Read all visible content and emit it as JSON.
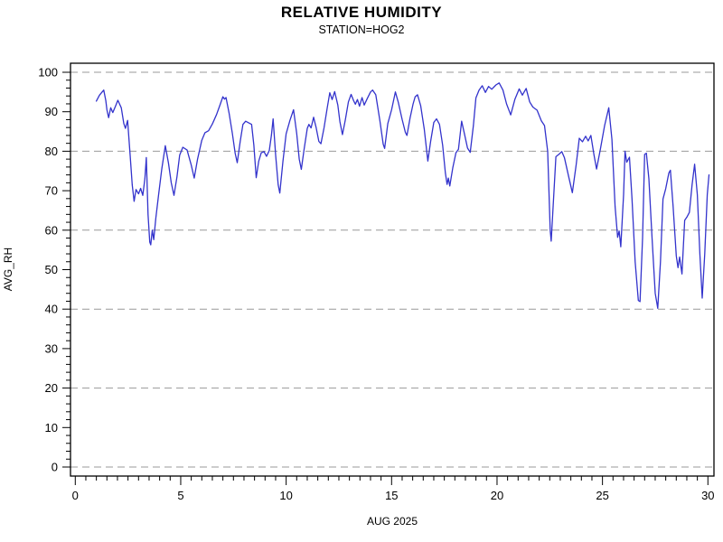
{
  "chart_data": {
    "type": "line",
    "title": "RELATIVE HUMIDITY",
    "subtitle": "STATION=HOG2",
    "xlabel": "AUG 2025",
    "ylabel": "AVG_RH",
    "xlim": [
      0,
      30
    ],
    "ylim": [
      0,
      100
    ],
    "x_major_ticks": [
      0,
      5,
      10,
      15,
      20,
      25,
      30
    ],
    "x_minor_step": 0.5,
    "y_major_ticks": [
      0,
      10,
      20,
      30,
      40,
      50,
      60,
      70,
      80,
      90,
      100
    ],
    "y_minor_step": 2,
    "grid_values": [
      0,
      20,
      40,
      60,
      80,
      100
    ],
    "grid_on": true,
    "legend": "none",
    "line_color": "#3333cc",
    "grid_color": "#999999",
    "frame_color": "#000000",
    "series": [
      {
        "name": "AVG_RH",
        "points": [
          [
            1.0,
            92.7
          ],
          [
            1.15,
            94.2
          ],
          [
            1.35,
            95.5
          ],
          [
            1.45,
            92.8
          ],
          [
            1.5,
            90.5
          ],
          [
            1.58,
            88.5
          ],
          [
            1.68,
            91.0
          ],
          [
            1.78,
            89.8
          ],
          [
            1.9,
            91.3
          ],
          [
            2.02,
            92.9
          ],
          [
            2.18,
            91.0
          ],
          [
            2.3,
            87.0
          ],
          [
            2.38,
            85.8
          ],
          [
            2.48,
            87.8
          ],
          [
            2.6,
            79.0
          ],
          [
            2.7,
            71.5
          ],
          [
            2.79,
            67.3
          ],
          [
            2.88,
            70.3
          ],
          [
            3.0,
            69.2
          ],
          [
            3.1,
            70.6
          ],
          [
            3.2,
            68.8
          ],
          [
            3.3,
            73.0
          ],
          [
            3.37,
            78.4
          ],
          [
            3.45,
            64.0
          ],
          [
            3.53,
            57.0
          ],
          [
            3.58,
            56.3
          ],
          [
            3.65,
            60.0
          ],
          [
            3.72,
            57.6
          ],
          [
            3.82,
            63.0
          ],
          [
            3.95,
            69.0
          ],
          [
            4.1,
            75.5
          ],
          [
            4.27,
            81.4
          ],
          [
            4.42,
            77.0
          ],
          [
            4.55,
            72.0
          ],
          [
            4.68,
            68.8
          ],
          [
            4.82,
            73.5
          ],
          [
            4.95,
            79.0
          ],
          [
            5.1,
            81.0
          ],
          [
            5.3,
            80.3
          ],
          [
            5.5,
            76.5
          ],
          [
            5.64,
            73.2
          ],
          [
            5.8,
            78.0
          ],
          [
            6.0,
            82.8
          ],
          [
            6.15,
            84.7
          ],
          [
            6.32,
            85.2
          ],
          [
            6.5,
            86.9
          ],
          [
            6.7,
            89.3
          ],
          [
            6.85,
            91.5
          ],
          [
            7.0,
            93.8
          ],
          [
            7.08,
            93.2
          ],
          [
            7.15,
            93.6
          ],
          [
            7.3,
            89.5
          ],
          [
            7.45,
            84.5
          ],
          [
            7.58,
            79.5
          ],
          [
            7.68,
            77.1
          ],
          [
            7.82,
            82.5
          ],
          [
            7.95,
            86.8
          ],
          [
            8.08,
            87.6
          ],
          [
            8.22,
            87.2
          ],
          [
            8.36,
            86.8
          ],
          [
            8.47,
            81.5
          ],
          [
            8.58,
            73.3
          ],
          [
            8.7,
            77.5
          ],
          [
            8.82,
            79.6
          ],
          [
            8.95,
            79.9
          ],
          [
            9.07,
            78.7
          ],
          [
            9.2,
            80.2
          ],
          [
            9.3,
            84.0
          ],
          [
            9.38,
            88.2
          ],
          [
            9.5,
            79.0
          ],
          [
            9.62,
            71.5
          ],
          [
            9.7,
            69.4
          ],
          [
            9.85,
            77.5
          ],
          [
            10.0,
            84.4
          ],
          [
            10.18,
            87.8
          ],
          [
            10.35,
            90.5
          ],
          [
            10.5,
            84.5
          ],
          [
            10.62,
            78.0
          ],
          [
            10.72,
            75.4
          ],
          [
            10.85,
            80.5
          ],
          [
            11.0,
            85.8
          ],
          [
            11.08,
            86.8
          ],
          [
            11.18,
            85.9
          ],
          [
            11.3,
            88.6
          ],
          [
            11.42,
            86.0
          ],
          [
            11.55,
            82.5
          ],
          [
            11.65,
            81.9
          ],
          [
            11.8,
            86.0
          ],
          [
            11.95,
            91.0
          ],
          [
            12.07,
            94.8
          ],
          [
            12.18,
            93.1
          ],
          [
            12.3,
            95.1
          ],
          [
            12.45,
            91.7
          ],
          [
            12.55,
            87.5
          ],
          [
            12.67,
            84.2
          ],
          [
            12.8,
            87.8
          ],
          [
            12.95,
            92.5
          ],
          [
            13.08,
            94.4
          ],
          [
            13.2,
            92.8
          ],
          [
            13.28,
            91.9
          ],
          [
            13.38,
            93.1
          ],
          [
            13.48,
            91.4
          ],
          [
            13.6,
            93.6
          ],
          [
            13.7,
            91.7
          ],
          [
            13.85,
            93.4
          ],
          [
            14.0,
            95.0
          ],
          [
            14.1,
            95.5
          ],
          [
            14.25,
            94.3
          ],
          [
            14.45,
            87.5
          ],
          [
            14.6,
            81.8
          ],
          [
            14.67,
            80.7
          ],
          [
            14.82,
            87.0
          ],
          [
            15.0,
            90.5
          ],
          [
            15.18,
            95.0
          ],
          [
            15.32,
            92.3
          ],
          [
            15.5,
            88.0
          ],
          [
            15.65,
            84.8
          ],
          [
            15.73,
            84.0
          ],
          [
            15.88,
            88.5
          ],
          [
            16.02,
            92.0
          ],
          [
            16.12,
            93.8
          ],
          [
            16.23,
            94.3
          ],
          [
            16.38,
            91.5
          ],
          [
            16.55,
            85.5
          ],
          [
            16.72,
            77.5
          ],
          [
            16.85,
            82.5
          ],
          [
            17.0,
            87.3
          ],
          [
            17.13,
            88.2
          ],
          [
            17.27,
            86.8
          ],
          [
            17.42,
            81.5
          ],
          [
            17.55,
            74.5
          ],
          [
            17.63,
            71.6
          ],
          [
            17.69,
            73.2
          ],
          [
            17.76,
            71.2
          ],
          [
            17.9,
            75.8
          ],
          [
            18.05,
            79.6
          ],
          [
            18.17,
            80.5
          ],
          [
            18.32,
            87.6
          ],
          [
            18.45,
            84.5
          ],
          [
            18.6,
            80.8
          ],
          [
            18.73,
            79.7
          ],
          [
            18.88,
            86.5
          ],
          [
            19.0,
            93.5
          ],
          [
            19.15,
            95.5
          ],
          [
            19.3,
            96.6
          ],
          [
            19.45,
            94.9
          ],
          [
            19.6,
            96.4
          ],
          [
            19.75,
            95.7
          ],
          [
            19.95,
            96.8
          ],
          [
            20.1,
            97.3
          ],
          [
            20.28,
            95.5
          ],
          [
            20.45,
            92.0
          ],
          [
            20.65,
            89.2
          ],
          [
            20.85,
            93.2
          ],
          [
            21.05,
            95.8
          ],
          [
            21.2,
            94.2
          ],
          [
            21.38,
            95.9
          ],
          [
            21.55,
            92.5
          ],
          [
            21.7,
            91.2
          ],
          [
            21.9,
            90.4
          ],
          [
            22.1,
            87.7
          ],
          [
            22.25,
            86.5
          ],
          [
            22.4,
            80.0
          ],
          [
            22.52,
            60.0
          ],
          [
            22.57,
            57.2
          ],
          [
            22.65,
            65.0
          ],
          [
            22.79,
            78.6
          ],
          [
            22.95,
            79.3
          ],
          [
            23.07,
            79.9
          ],
          [
            23.2,
            78.3
          ],
          [
            23.4,
            73.5
          ],
          [
            23.57,
            69.5
          ],
          [
            23.75,
            76.5
          ],
          [
            23.9,
            83.3
          ],
          [
            24.05,
            82.4
          ],
          [
            24.2,
            83.8
          ],
          [
            24.32,
            82.6
          ],
          [
            24.45,
            84.0
          ],
          [
            24.6,
            79.0
          ],
          [
            24.72,
            75.5
          ],
          [
            24.9,
            80.5
          ],
          [
            25.1,
            86.5
          ],
          [
            25.3,
            91.0
          ],
          [
            25.45,
            83.0
          ],
          [
            25.6,
            66.0
          ],
          [
            25.72,
            58.2
          ],
          [
            25.79,
            59.8
          ],
          [
            25.87,
            55.8
          ],
          [
            26.0,
            69.0
          ],
          [
            26.07,
            80.0
          ],
          [
            26.15,
            77.2
          ],
          [
            26.28,
            78.5
          ],
          [
            26.4,
            68.0
          ],
          [
            26.55,
            52.0
          ],
          [
            26.7,
            42.2
          ],
          [
            26.78,
            41.9
          ],
          [
            26.9,
            58.0
          ],
          [
            27.0,
            79.2
          ],
          [
            27.08,
            79.5
          ],
          [
            27.2,
            73.0
          ],
          [
            27.35,
            58.0
          ],
          [
            27.5,
            44.0
          ],
          [
            27.62,
            40.2
          ],
          [
            27.75,
            52.0
          ],
          [
            27.87,
            67.9
          ],
          [
            28.0,
            70.5
          ],
          [
            28.15,
            74.5
          ],
          [
            28.22,
            75.2
          ],
          [
            28.35,
            66.0
          ],
          [
            28.5,
            53.5
          ],
          [
            28.58,
            50.5
          ],
          [
            28.66,
            53.2
          ],
          [
            28.77,
            48.9
          ],
          [
            28.9,
            62.5
          ],
          [
            29.0,
            63.3
          ],
          [
            29.12,
            64.5
          ],
          [
            29.25,
            71.5
          ],
          [
            29.37,
            76.7
          ],
          [
            29.5,
            69.0
          ],
          [
            29.62,
            54.0
          ],
          [
            29.73,
            42.8
          ],
          [
            29.85,
            54.0
          ],
          [
            29.97,
            69.0
          ],
          [
            30.05,
            74.0
          ]
        ]
      }
    ]
  }
}
